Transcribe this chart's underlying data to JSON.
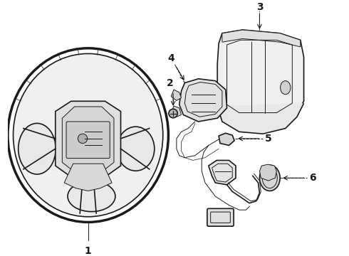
{
  "background_color": "#ffffff",
  "line_color": "#1a1a1a",
  "fill_color": "#f5f5f5",
  "dark_fill": "#d8d8d8",
  "lw_thick": 2.0,
  "lw_med": 1.2,
  "lw_thin": 0.7,
  "lw_hair": 0.5,
  "figsize": [
    4.9,
    3.6
  ],
  "dpi": 100,
  "label_fs": 10,
  "label_fw": "bold"
}
